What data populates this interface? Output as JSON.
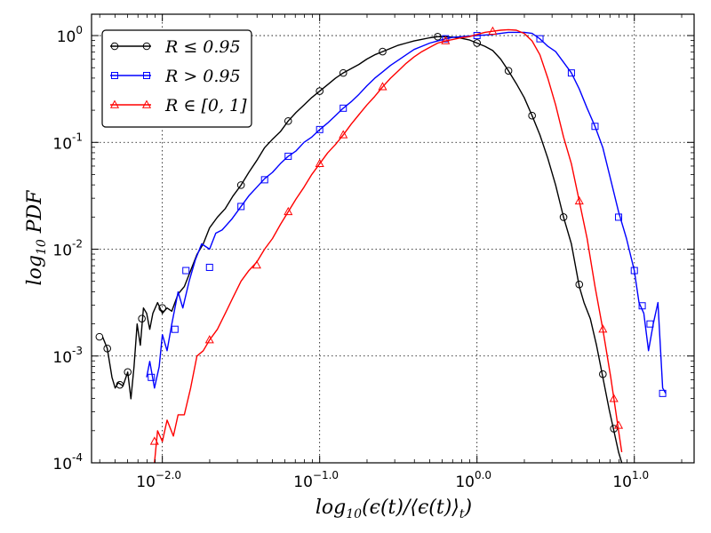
{
  "chart_data": {
    "type": "line",
    "title": "",
    "xscale": "log",
    "yscale": "log",
    "xlim_log10": [
      -2.45,
      1.38
    ],
    "ylim_log10": [
      -4,
      0.2
    ],
    "xlabel": "log10(ε(t)/⟨ε(t)⟩t)",
    "ylabel": "log10 PDF",
    "grid": true,
    "legend_position": "top-left",
    "x_ticks": [
      {
        "log10": -2,
        "base": "10",
        "exp": "−2.0"
      },
      {
        "log10": -1,
        "base": "10",
        "exp": "−1.0"
      },
      {
        "log10": 0,
        "base": "10",
        "exp": "0.0"
      },
      {
        "log10": 1,
        "base": "10",
        "exp": "1.0"
      }
    ],
    "y_ticks": [
      {
        "log10": -4,
        "base": "10",
        "exp": "-4"
      },
      {
        "log10": -3,
        "base": "10",
        "exp": "-3"
      },
      {
        "log10": -2,
        "base": "10",
        "exp": "-2"
      },
      {
        "log10": -1,
        "base": "10",
        "exp": "-1"
      },
      {
        "log10": 0,
        "base": "10",
        "exp": "0"
      }
    ],
    "series": [
      {
        "name": "R ≤ 0.95",
        "legend_label": "R ≤ 0.95",
        "color": "#000000",
        "marker": "circle",
        "points_log10": [
          [
            -2.38,
            -2.82
          ],
          [
            -2.35,
            -2.93
          ],
          [
            -2.32,
            -3.2
          ],
          [
            -2.3,
            -3.3
          ],
          [
            -2.28,
            -3.25
          ],
          [
            -2.25,
            -3.28
          ],
          [
            -2.22,
            -3.15
          ],
          [
            -2.2,
            -3.4
          ],
          [
            -2.18,
            -3.1
          ],
          [
            -2.16,
            -2.7
          ],
          [
            -2.14,
            -2.9
          ],
          [
            -2.12,
            -2.55
          ],
          [
            -2.1,
            -2.6
          ],
          [
            -2.08,
            -2.75
          ],
          [
            -2.06,
            -2.6
          ],
          [
            -2.03,
            -2.5
          ],
          [
            -2.0,
            -2.6
          ],
          [
            -1.97,
            -2.55
          ],
          [
            -1.94,
            -2.58
          ],
          [
            -1.9,
            -2.42
          ],
          [
            -1.86,
            -2.35
          ],
          [
            -1.82,
            -2.2
          ],
          [
            -1.78,
            -2.05
          ],
          [
            -1.74,
            -1.95
          ],
          [
            -1.7,
            -1.8
          ],
          [
            -1.65,
            -1.7
          ],
          [
            -1.6,
            -1.62
          ],
          [
            -1.55,
            -1.5
          ],
          [
            -1.5,
            -1.4
          ],
          [
            -1.45,
            -1.28
          ],
          [
            -1.4,
            -1.17
          ],
          [
            -1.35,
            -1.05
          ],
          [
            -1.3,
            -0.97
          ],
          [
            -1.25,
            -0.9
          ],
          [
            -1.2,
            -0.8
          ],
          [
            -1.15,
            -0.72
          ],
          [
            -1.1,
            -0.65
          ],
          [
            -1.05,
            -0.58
          ],
          [
            -1.0,
            -0.52
          ],
          [
            -0.95,
            -0.46
          ],
          [
            -0.9,
            -0.4
          ],
          [
            -0.85,
            -0.35
          ],
          [
            -0.8,
            -0.31
          ],
          [
            -0.75,
            -0.27
          ],
          [
            -0.7,
            -0.22
          ],
          [
            -0.65,
            -0.18
          ],
          [
            -0.6,
            -0.15
          ],
          [
            -0.55,
            -0.12
          ],
          [
            -0.5,
            -0.09
          ],
          [
            -0.45,
            -0.07
          ],
          [
            -0.4,
            -0.05
          ],
          [
            -0.35,
            -0.035
          ],
          [
            -0.3,
            -0.02
          ],
          [
            -0.25,
            -0.01
          ],
          [
            -0.2,
            -0.01
          ],
          [
            -0.15,
            -0.015
          ],
          [
            -0.1,
            -0.025
          ],
          [
            -0.05,
            -0.04
          ],
          [
            0.0,
            -0.07
          ],
          [
            0.05,
            -0.1
          ],
          [
            0.1,
            -0.14
          ],
          [
            0.15,
            -0.22
          ],
          [
            0.2,
            -0.33
          ],
          [
            0.25,
            -0.45
          ],
          [
            0.3,
            -0.58
          ],
          [
            0.35,
            -0.75
          ],
          [
            0.4,
            -0.93
          ],
          [
            0.45,
            -1.15
          ],
          [
            0.5,
            -1.4
          ],
          [
            0.55,
            -1.7
          ],
          [
            0.6,
            -1.95
          ],
          [
            0.65,
            -2.35
          ],
          [
            0.68,
            -2.5
          ],
          [
            0.72,
            -2.65
          ],
          [
            0.76,
            -2.9
          ],
          [
            0.8,
            -3.2
          ],
          [
            0.84,
            -3.5
          ],
          [
            0.87,
            -3.7
          ],
          [
            0.9,
            -3.9
          ],
          [
            0.92,
            -4.0
          ]
        ],
        "marker_points_log10": [
          [
            -2.4,
            -2.82
          ],
          [
            -2.35,
            -2.93
          ],
          [
            -2.27,
            -3.27
          ],
          [
            -2.22,
            -3.15
          ],
          [
            -2.13,
            -2.65
          ],
          [
            -2.0,
            -2.55
          ],
          [
            -1.5,
            -1.4
          ],
          [
            -1.2,
            -0.8
          ],
          [
            -1.0,
            -0.52
          ],
          [
            -0.85,
            -0.35
          ],
          [
            -0.6,
            -0.15
          ],
          [
            -0.25,
            -0.01
          ],
          [
            0.0,
            -0.07
          ],
          [
            0.2,
            -0.33
          ],
          [
            0.35,
            -0.75
          ],
          [
            0.55,
            -1.7
          ],
          [
            0.65,
            -2.33
          ],
          [
            0.8,
            -3.17
          ],
          [
            0.87,
            -3.68
          ]
        ]
      },
      {
        "name": "R > 0.95",
        "legend_label": "R > 0.95",
        "color": "#0000ff",
        "marker": "square",
        "points_log10": [
          [
            -2.1,
            -3.2
          ],
          [
            -2.08,
            -3.05
          ],
          [
            -2.05,
            -3.3
          ],
          [
            -2.02,
            -3.1
          ],
          [
            -2.0,
            -2.8
          ],
          [
            -1.97,
            -2.95
          ],
          [
            -1.94,
            -2.7
          ],
          [
            -1.9,
            -2.4
          ],
          [
            -1.87,
            -2.55
          ],
          [
            -1.83,
            -2.3
          ],
          [
            -1.79,
            -2.1
          ],
          [
            -1.75,
            -1.95
          ],
          [
            -1.7,
            -2.0
          ],
          [
            -1.66,
            -1.85
          ],
          [
            -1.62,
            -1.82
          ],
          [
            -1.56,
            -1.72
          ],
          [
            -1.5,
            -1.6
          ],
          [
            -1.45,
            -1.5
          ],
          [
            -1.4,
            -1.42
          ],
          [
            -1.35,
            -1.34
          ],
          [
            -1.3,
            -1.28
          ],
          [
            -1.25,
            -1.2
          ],
          [
            -1.2,
            -1.13
          ],
          [
            -1.15,
            -1.08
          ],
          [
            -1.1,
            -1.0
          ],
          [
            -1.05,
            -0.95
          ],
          [
            -1.0,
            -0.88
          ],
          [
            -0.95,
            -0.82
          ],
          [
            -0.9,
            -0.75
          ],
          [
            -0.85,
            -0.68
          ],
          [
            -0.8,
            -0.62
          ],
          [
            -0.75,
            -0.55
          ],
          [
            -0.7,
            -0.47
          ],
          [
            -0.65,
            -0.4
          ],
          [
            -0.6,
            -0.34
          ],
          [
            -0.55,
            -0.28
          ],
          [
            -0.5,
            -0.23
          ],
          [
            -0.45,
            -0.18
          ],
          [
            -0.4,
            -0.13
          ],
          [
            -0.35,
            -0.1
          ],
          [
            -0.3,
            -0.07
          ],
          [
            -0.25,
            -0.05
          ],
          [
            -0.2,
            -0.03
          ],
          [
            -0.15,
            -0.015
          ],
          [
            -0.1,
            -0.01
          ],
          [
            -0.05,
            -0.005
          ],
          [
            0.0,
            0.0
          ],
          [
            0.05,
            0.005
          ],
          [
            0.1,
            0.01
          ],
          [
            0.15,
            0.02
          ],
          [
            0.2,
            0.03
          ],
          [
            0.25,
            0.03
          ],
          [
            0.3,
            0.03
          ],
          [
            0.35,
            0.02
          ],
          [
            0.4,
            -0.03
          ],
          [
            0.45,
            -0.1
          ],
          [
            0.5,
            -0.15
          ],
          [
            0.55,
            -0.25
          ],
          [
            0.6,
            -0.35
          ],
          [
            0.65,
            -0.5
          ],
          [
            0.7,
            -0.68
          ],
          [
            0.75,
            -0.85
          ],
          [
            0.8,
            -1.05
          ],
          [
            0.85,
            -1.35
          ],
          [
            0.9,
            -1.65
          ],
          [
            0.95,
            -1.9
          ],
          [
            1.0,
            -2.2
          ],
          [
            1.03,
            -2.5
          ],
          [
            1.06,
            -2.6
          ],
          [
            1.09,
            -2.95
          ],
          [
            1.12,
            -2.7
          ],
          [
            1.15,
            -2.5
          ],
          [
            1.18,
            -3.3
          ],
          [
            1.2,
            -3.35
          ]
        ],
        "marker_points_log10": [
          [
            -2.07,
            -3.2
          ],
          [
            -1.92,
            -2.75
          ],
          [
            -1.85,
            -2.2
          ],
          [
            -1.7,
            -2.17
          ],
          [
            -1.5,
            -1.6
          ],
          [
            -1.35,
            -1.35
          ],
          [
            -1.2,
            -1.13
          ],
          [
            -1.0,
            -0.88
          ],
          [
            -0.85,
            -0.68
          ],
          [
            -0.2,
            -0.03
          ],
          [
            0.0,
            0.0
          ],
          [
            0.4,
            -0.03
          ],
          [
            0.6,
            -0.35
          ],
          [
            0.75,
            -0.85
          ],
          [
            0.9,
            -1.7
          ],
          [
            1.0,
            -2.2
          ],
          [
            1.05,
            -2.53
          ],
          [
            1.1,
            -2.7
          ],
          [
            1.18,
            -3.35
          ]
        ]
      },
      {
        "name": "R ∈ [0, 1]",
        "legend_label": "R ∈ [0, 1]",
        "color": "#ff0000",
        "marker": "triangle",
        "points_log10": [
          [
            -2.05,
            -4.0
          ],
          [
            -2.03,
            -3.7
          ],
          [
            -2.0,
            -3.8
          ],
          [
            -1.97,
            -3.6
          ],
          [
            -1.93,
            -3.75
          ],
          [
            -1.9,
            -3.55
          ],
          [
            -1.86,
            -3.55
          ],
          [
            -1.82,
            -3.3
          ],
          [
            -1.78,
            -3.0
          ],
          [
            -1.74,
            -2.95
          ],
          [
            -1.7,
            -2.85
          ],
          [
            -1.65,
            -2.75
          ],
          [
            -1.6,
            -2.6
          ],
          [
            -1.55,
            -2.45
          ],
          [
            -1.5,
            -2.3
          ],
          [
            -1.45,
            -2.2
          ],
          [
            -1.4,
            -2.12
          ],
          [
            -1.35,
            -2.0
          ],
          [
            -1.3,
            -1.9
          ],
          [
            -1.25,
            -1.77
          ],
          [
            -1.2,
            -1.65
          ],
          [
            -1.15,
            -1.53
          ],
          [
            -1.1,
            -1.42
          ],
          [
            -1.05,
            -1.3
          ],
          [
            -1.0,
            -1.2
          ],
          [
            -0.95,
            -1.1
          ],
          [
            -0.9,
            -1.02
          ],
          [
            -0.85,
            -0.93
          ],
          [
            -0.8,
            -0.83
          ],
          [
            -0.75,
            -0.74
          ],
          [
            -0.7,
            -0.65
          ],
          [
            -0.65,
            -0.57
          ],
          [
            -0.6,
            -0.48
          ],
          [
            -0.55,
            -0.4
          ],
          [
            -0.5,
            -0.33
          ],
          [
            -0.45,
            -0.26
          ],
          [
            -0.4,
            -0.2
          ],
          [
            -0.35,
            -0.15
          ],
          [
            -0.3,
            -0.11
          ],
          [
            -0.25,
            -0.07
          ],
          [
            -0.2,
            -0.05
          ],
          [
            -0.15,
            -0.035
          ],
          [
            -0.1,
            -0.02
          ],
          [
            -0.05,
            -0.01
          ],
          [
            0.0,
            0.01
          ],
          [
            0.05,
            0.03
          ],
          [
            0.1,
            0.04
          ],
          [
            0.15,
            0.05
          ],
          [
            0.2,
            0.055
          ],
          [
            0.25,
            0.05
          ],
          [
            0.3,
            0.02
          ],
          [
            0.35,
            -0.05
          ],
          [
            0.4,
            -0.18
          ],
          [
            0.45,
            -0.4
          ],
          [
            0.5,
            -0.65
          ],
          [
            0.55,
            -0.95
          ],
          [
            0.6,
            -1.2
          ],
          [
            0.65,
            -1.55
          ],
          [
            0.7,
            -1.9
          ],
          [
            0.75,
            -2.35
          ],
          [
            0.8,
            -2.75
          ],
          [
            0.85,
            -3.2
          ],
          [
            0.88,
            -3.5
          ],
          [
            0.9,
            -3.7
          ],
          [
            0.92,
            -3.9
          ]
        ],
        "marker_points_log10": [
          [
            -2.05,
            -3.8
          ],
          [
            -1.7,
            -2.85
          ],
          [
            -1.4,
            -2.15
          ],
          [
            -1.2,
            -1.65
          ],
          [
            -1.0,
            -1.2
          ],
          [
            -0.85,
            -0.93
          ],
          [
            -0.6,
            -0.48
          ],
          [
            -0.2,
            -0.05
          ],
          [
            0.1,
            0.04
          ],
          [
            0.65,
            -1.55
          ],
          [
            0.8,
            -2.75
          ],
          [
            0.87,
            -3.4
          ],
          [
            0.9,
            -3.65
          ]
        ]
      }
    ]
  }
}
